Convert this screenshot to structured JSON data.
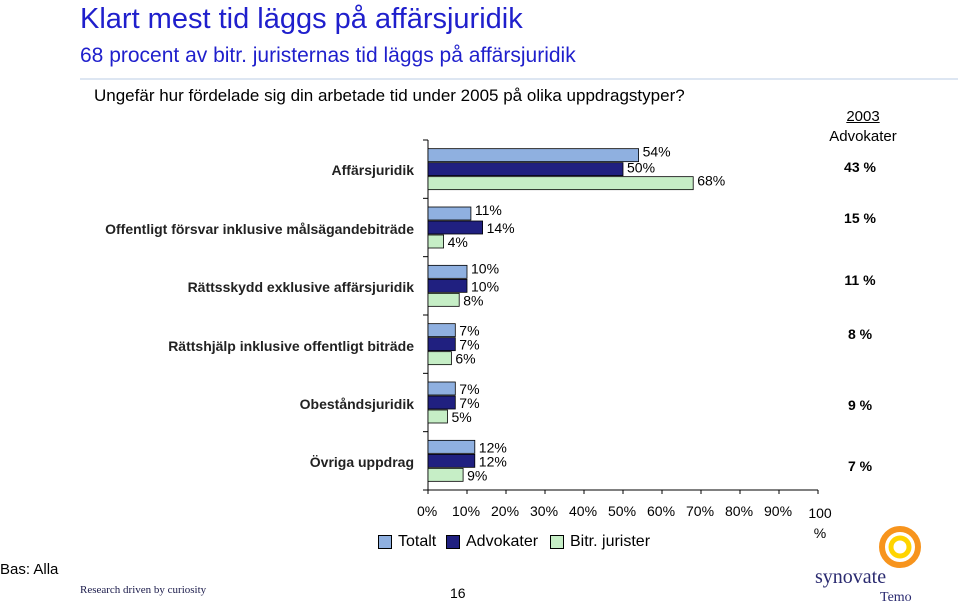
{
  "header": {
    "title": "Klart mest tid läggs på affärsjuridik",
    "subtitle": "68 procent av bitr. juristernas tid läggs på affärsjuridik",
    "question": "Ungefär hur fördelade sig din arbetade tid under 2005 på olika uppdragstyper?"
  },
  "side_column": {
    "year": "2003",
    "label": "Advokater",
    "values": [
      "43 %",
      "15 %",
      "11 %",
      "8 %",
      "9  %",
      "7  %"
    ]
  },
  "chart_data": {
    "type": "bar",
    "orientation": "horizontal",
    "categories": [
      "Affärsjuridik",
      "Offentligt försvar inklusive målsägandebiträde",
      "Rättsskydd exklusive affärsjuridik",
      "Rättshjälp inklusive offentligt biträde",
      "Obeståndsjuridik",
      "Övriga uppdrag"
    ],
    "series": [
      {
        "name": "Totalt",
        "color": "#8fb0e0",
        "values": [
          54,
          11,
          10,
          7,
          7,
          12
        ]
      },
      {
        "name": "Advokater",
        "color": "#202080",
        "values": [
          50,
          14,
          10,
          7,
          7,
          12
        ]
      },
      {
        "name": "Bitr. jurister",
        "color": "#c6eec6",
        "values": [
          68,
          4,
          8,
          6,
          5,
          9
        ]
      }
    ],
    "data_labels": [
      [
        "54%",
        "11%",
        "10%",
        "7%",
        "7%",
        "12%"
      ],
      [
        "50%",
        "14%",
        "10%",
        "7%",
        "7%",
        "12%"
      ],
      [
        "68%",
        "4%",
        "8%",
        "6%",
        "5%",
        "9%"
      ]
    ],
    "x_ticks": [
      "0%",
      "10%",
      "20%",
      "30%",
      "40%",
      "50%",
      "60%",
      "70%",
      "80%",
      "90%",
      "100\n%"
    ],
    "xlim": [
      0,
      100
    ],
    "legend_position": "bottom"
  },
  "footer": {
    "bas": "Bas: Alla",
    "tagline": "Research driven by curiosity",
    "page": "16",
    "logo_word": "synovate",
    "logo_sub": "Temo"
  },
  "colors": {
    "title": "#1f1fcc",
    "logo_orange": "#f7941d",
    "logo_yellow": "#ffd400"
  }
}
